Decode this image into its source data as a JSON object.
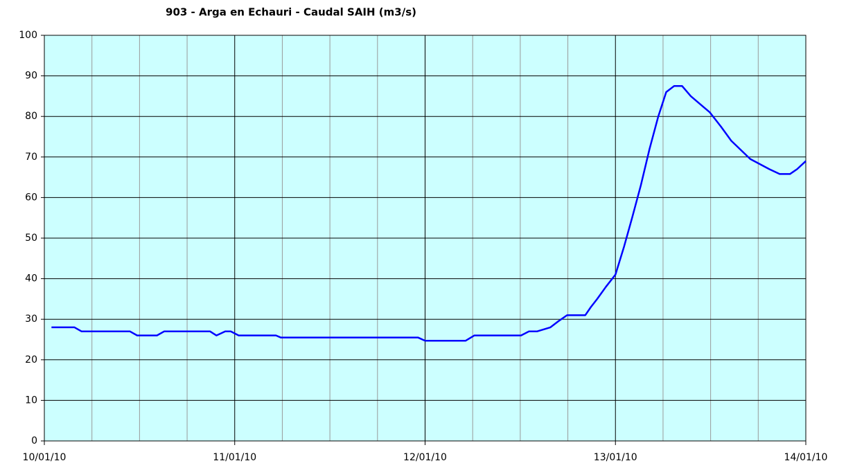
{
  "chart_data": {
    "type": "line",
    "title": "903 - Arga en Echauri - Caudal SAIH (m3/s)",
    "x": [
      0.9,
      3.8,
      4.7,
      10.8,
      11.7,
      14.2,
      15.1,
      20.9,
      21.7,
      22.8,
      23.5,
      24.5,
      29.2,
      29.8,
      47.1,
      48.0,
      53.1,
      54.2,
      60.1,
      61.1,
      62.1,
      63.8,
      64.8,
      65.9,
      68.2,
      68.9,
      69.7,
      70.8,
      72.0,
      73.1,
      74.1,
      75.2,
      76.3,
      77.4,
      78.4,
      79.4,
      80.4,
      81.5,
      83.9,
      85.3,
      86.6,
      89.0,
      91.4,
      92.7,
      94.0,
      94.9,
      96.0
    ],
    "series": [
      {
        "name": "Caudal",
        "color": "#0000ff",
        "values": [
          28,
          28,
          27,
          27,
          26,
          26,
          27,
          27,
          26,
          27,
          27,
          26,
          26,
          25.5,
          25.5,
          24.7,
          24.7,
          26,
          26,
          27,
          27,
          28,
          29.5,
          31,
          31,
          33,
          35,
          38,
          41,
          48,
          55,
          63,
          72,
          80,
          86,
          87.5,
          87.5,
          85,
          81,
          77.5,
          74,
          69.5,
          67,
          65.8,
          65.8,
          67,
          69
        ]
      }
    ],
    "xlim": [
      0,
      96
    ],
    "xticks": [
      {
        "value": 0,
        "label": "10/01/10"
      },
      {
        "value": 24,
        "label": "11/01/10"
      },
      {
        "value": 48,
        "label": "12/01/10"
      },
      {
        "value": 72,
        "label": "13/01/10"
      },
      {
        "value": 96,
        "label": "14/01/10"
      }
    ],
    "xminor_ticks": [
      6,
      12,
      18,
      30,
      36,
      42,
      54,
      60,
      66,
      78,
      84,
      90
    ],
    "ylim": [
      0,
      100
    ],
    "yticks": [
      0,
      10,
      20,
      30,
      40,
      50,
      60,
      70,
      80,
      90,
      100
    ],
    "grid": true,
    "plot_background": "#ccffff"
  }
}
